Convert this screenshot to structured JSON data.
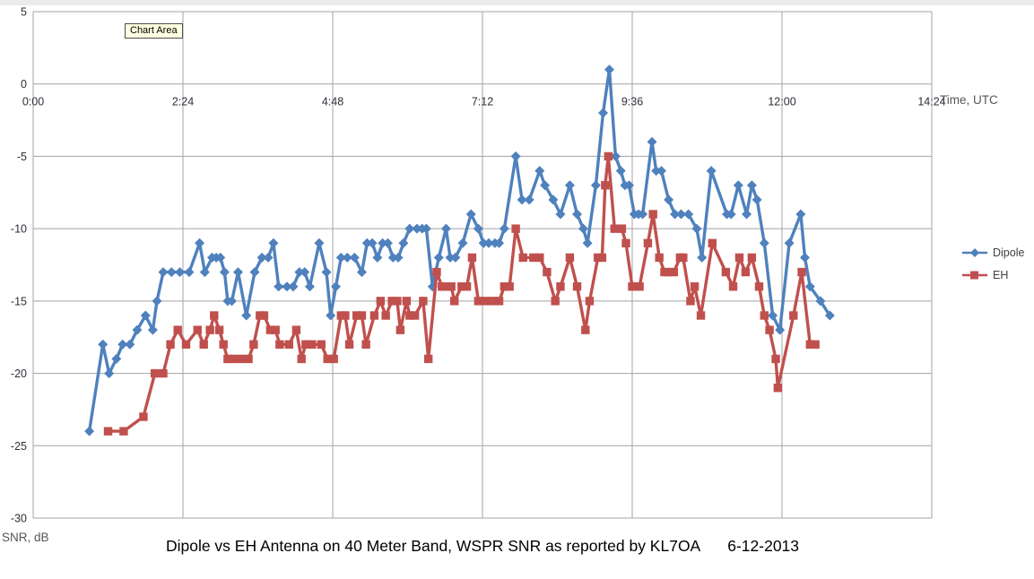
{
  "window": {
    "tooltip_label": "Chart Area"
  },
  "colors": {
    "dipole_series": "#4F81BD",
    "eh_series": "#C0504D",
    "gridline": "#A3A3A3",
    "tick_text": "#2e2e38",
    "axis_title_text": "#555555",
    "tooltip_bg": "#FFFFE1"
  },
  "chart_data": {
    "type": "line",
    "title": "Dipole vs EH Antenna on 40 Meter Band, WSPR SNR as reported by KL7OA",
    "date_annotation": "6-12-2013",
    "xlabel": "Time, UTC",
    "ylabel": "SNR, dB",
    "grid": true,
    "legend_position": "right",
    "xlim_minutes": [
      0,
      864
    ],
    "ylim": [
      -30,
      5
    ],
    "x_ticks": [
      {
        "minutes": 0,
        "label": "0:00"
      },
      {
        "minutes": 144,
        "label": "2:24"
      },
      {
        "minutes": 288,
        "label": "4:48"
      },
      {
        "minutes": 432,
        "label": "7:12"
      },
      {
        "minutes": 576,
        "label": "9:36"
      },
      {
        "minutes": 720,
        "label": "12:00"
      },
      {
        "minutes": 864,
        "label": "14:24"
      }
    ],
    "y_ticks": [
      5,
      0,
      -5,
      -10,
      -15,
      -20,
      -25,
      -30
    ],
    "series": [
      {
        "name": "Dipole",
        "color": "#4F81BD",
        "marker": "diamond",
        "points": [
          [
            54,
            -24
          ],
          [
            67,
            -18
          ],
          [
            73,
            -20
          ],
          [
            80,
            -19
          ],
          [
            86,
            -18
          ],
          [
            93,
            -18
          ],
          [
            100,
            -17
          ],
          [
            108,
            -16
          ],
          [
            115,
            -17
          ],
          [
            119,
            -15
          ],
          [
            125,
            -13
          ],
          [
            133,
            -13
          ],
          [
            141,
            -13
          ],
          [
            150,
            -13
          ],
          [
            160,
            -11
          ],
          [
            165,
            -13
          ],
          [
            172,
            -12
          ],
          [
            176,
            -12
          ],
          [
            180,
            -12
          ],
          [
            184,
            -13
          ],
          [
            187,
            -15
          ],
          [
            191,
            -15
          ],
          [
            197,
            -13
          ],
          [
            205,
            -16
          ],
          [
            213,
            -13
          ],
          [
            220,
            -12
          ],
          [
            226,
            -12
          ],
          [
            231,
            -11
          ],
          [
            236,
            -14
          ],
          [
            244,
            -14
          ],
          [
            250,
            -14
          ],
          [
            256,
            -13
          ],
          [
            261,
            -13
          ],
          [
            266,
            -14
          ],
          [
            275,
            -11
          ],
          [
            282,
            -13
          ],
          [
            286,
            -16
          ],
          [
            291,
            -14
          ],
          [
            296,
            -12
          ],
          [
            302,
            -12
          ],
          [
            309,
            -12
          ],
          [
            316,
            -13
          ],
          [
            321,
            -11
          ],
          [
            326,
            -11
          ],
          [
            331,
            -12
          ],
          [
            336,
            -11
          ],
          [
            341,
            -11
          ],
          [
            346,
            -12
          ],
          [
            351,
            -12
          ],
          [
            356,
            -11
          ],
          [
            362,
            -10
          ],
          [
            369,
            -10
          ],
          [
            374,
            -10
          ],
          [
            378,
            -10
          ],
          [
            384,
            -14
          ],
          [
            390,
            -12
          ],
          [
            397,
            -10
          ],
          [
            401,
            -12
          ],
          [
            406,
            -12
          ],
          [
            413,
            -11
          ],
          [
            421,
            -9
          ],
          [
            428,
            -10
          ],
          [
            433,
            -11
          ],
          [
            438,
            -11
          ],
          [
            444,
            -11
          ],
          [
            448,
            -11
          ],
          [
            453,
            -10
          ],
          [
            464,
            -5
          ],
          [
            470,
            -8
          ],
          [
            477,
            -8
          ],
          [
            487,
            -6
          ],
          [
            492,
            -7
          ],
          [
            500,
            -8
          ],
          [
            507,
            -9
          ],
          [
            516,
            -7
          ],
          [
            523,
            -9
          ],
          [
            529,
            -10
          ],
          [
            533,
            -11
          ],
          [
            541,
            -7
          ],
          [
            548,
            -2
          ],
          [
            554,
            1
          ],
          [
            560,
            -5
          ],
          [
            565,
            -6
          ],
          [
            569,
            -7
          ],
          [
            573,
            -7
          ],
          [
            578,
            -9
          ],
          [
            582,
            -9
          ],
          [
            586,
            -9
          ],
          [
            595,
            -4
          ],
          [
            599,
            -6
          ],
          [
            604,
            -6
          ],
          [
            611,
            -8
          ],
          [
            617,
            -9
          ],
          [
            623,
            -9
          ],
          [
            630,
            -9
          ],
          [
            638,
            -10
          ],
          [
            643,
            -12
          ],
          [
            652,
            -6
          ],
          [
            667,
            -9
          ],
          [
            671,
            -9
          ],
          [
            678,
            -7
          ],
          [
            686,
            -9
          ],
          [
            691,
            -7
          ],
          [
            696,
            -8
          ],
          [
            703,
            -11
          ],
          [
            711,
            -16
          ],
          [
            718,
            -17
          ],
          [
            727,
            -11
          ],
          [
            738,
            -9
          ],
          [
            742,
            -12
          ],
          [
            747,
            -14
          ],
          [
            757,
            -15
          ],
          [
            766,
            -16
          ]
        ]
      },
      {
        "name": "EH",
        "color": "#C0504D",
        "marker": "square",
        "points": [
          [
            72,
            -24
          ],
          [
            87,
            -24
          ],
          [
            106,
            -23
          ],
          [
            117,
            -20
          ],
          [
            125,
            -20
          ],
          [
            132,
            -18
          ],
          [
            139,
            -17
          ],
          [
            147,
            -18
          ],
          [
            158,
            -17
          ],
          [
            164,
            -18
          ],
          [
            170,
            -17
          ],
          [
            174,
            -16
          ],
          [
            179,
            -17
          ],
          [
            183,
            -18
          ],
          [
            187,
            -19
          ],
          [
            193,
            -19
          ],
          [
            200,
            -19
          ],
          [
            207,
            -19
          ],
          [
            212,
            -18
          ],
          [
            218,
            -16
          ],
          [
            222,
            -16
          ],
          [
            228,
            -17
          ],
          [
            233,
            -17
          ],
          [
            237,
            -18
          ],
          [
            246,
            -18
          ],
          [
            253,
            -17
          ],
          [
            258,
            -19
          ],
          [
            262,
            -18
          ],
          [
            268,
            -18
          ],
          [
            277,
            -18
          ],
          [
            283,
            -19
          ],
          [
            289,
            -19
          ],
          [
            296,
            -16
          ],
          [
            300,
            -16
          ],
          [
            304,
            -18
          ],
          [
            311,
            -16
          ],
          [
            316,
            -16
          ],
          [
            320,
            -18
          ],
          [
            328,
            -16
          ],
          [
            334,
            -15
          ],
          [
            339,
            -16
          ],
          [
            345,
            -15
          ],
          [
            350,
            -15
          ],
          [
            353,
            -17
          ],
          [
            359,
            -15
          ],
          [
            362,
            -16
          ],
          [
            367,
            -16
          ],
          [
            375,
            -15
          ],
          [
            380,
            -19
          ],
          [
            388,
            -13
          ],
          [
            393,
            -14
          ],
          [
            397,
            -14
          ],
          [
            402,
            -14
          ],
          [
            405,
            -15
          ],
          [
            412,
            -14
          ],
          [
            417,
            -14
          ],
          [
            422,
            -12
          ],
          [
            428,
            -15
          ],
          [
            435,
            -15
          ],
          [
            442,
            -15
          ],
          [
            448,
            -15
          ],
          [
            453,
            -14
          ],
          [
            458,
            -14
          ],
          [
            464,
            -10
          ],
          [
            471,
            -12
          ],
          [
            481,
            -12
          ],
          [
            487,
            -12
          ],
          [
            494,
            -13
          ],
          [
            502,
            -15
          ],
          [
            507,
            -14
          ],
          [
            516,
            -12
          ],
          [
            523,
            -14
          ],
          [
            531,
            -17
          ],
          [
            535,
            -15
          ],
          [
            543,
            -12
          ],
          [
            547,
            -12
          ],
          [
            550,
            -7
          ],
          [
            553,
            -5
          ],
          [
            559,
            -10
          ],
          [
            566,
            -10
          ],
          [
            570,
            -11
          ],
          [
            576,
            -14
          ],
          [
            583,
            -14
          ],
          [
            591,
            -11
          ],
          [
            596,
            -9
          ],
          [
            602,
            -12
          ],
          [
            607,
            -13
          ],
          [
            611,
            -13
          ],
          [
            616,
            -13
          ],
          [
            622,
            -12
          ],
          [
            625,
            -12
          ],
          [
            632,
            -15
          ],
          [
            636,
            -14
          ],
          [
            642,
            -16
          ],
          [
            653,
            -11
          ],
          [
            666,
            -13
          ],
          [
            673,
            -14
          ],
          [
            679,
            -12
          ],
          [
            685,
            -13
          ],
          [
            691,
            -12
          ],
          [
            698,
            -14
          ],
          [
            703,
            -16
          ],
          [
            708,
            -17
          ],
          [
            714,
            -19
          ],
          [
            716,
            -21
          ],
          [
            731,
            -16
          ],
          [
            739,
            -13
          ],
          [
            747,
            -18
          ],
          [
            752,
            -18
          ]
        ]
      }
    ]
  }
}
